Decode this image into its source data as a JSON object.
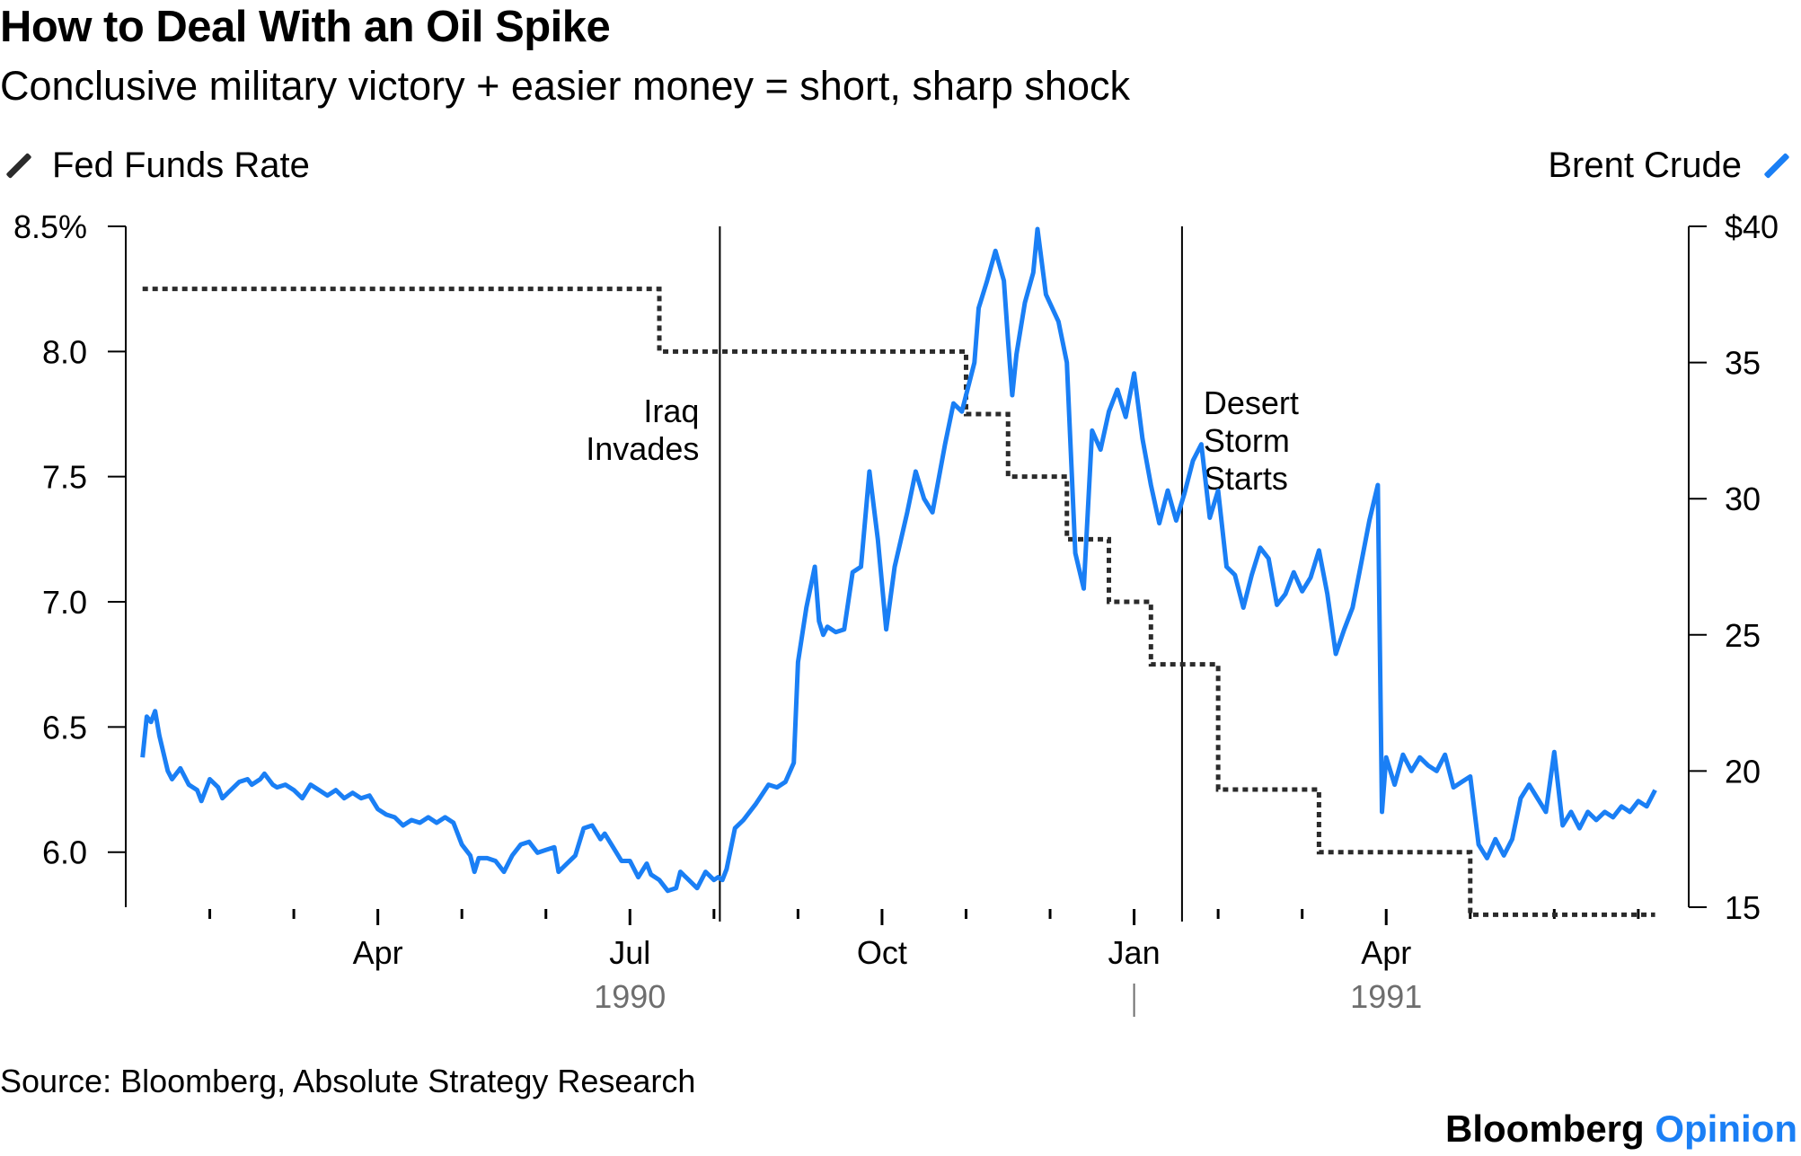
{
  "colors": {
    "fed": "#2b2b2b",
    "brent": "#1a7ff5",
    "axis": "#000000",
    "year": "#6e6e6e"
  },
  "chart_data": {
    "type": "line",
    "title": "How to Deal With an Oil Spike",
    "subtitle": "Conclusive military victory + easier money = short, sharp shock",
    "legend": {
      "left": "Fed Funds Rate",
      "right": "Brent Crude"
    },
    "x_ticks": [
      "Apr",
      "Jul",
      "Oct",
      "Jan",
      "Apr"
    ],
    "x_tick_months": [
      3,
      6,
      9,
      12,
      15
    ],
    "years": [
      {
        "label": "1990",
        "month": 6
      },
      {
        "label": "1991",
        "month": 15
      }
    ],
    "y_left": {
      "range": [
        5.78,
        8.5
      ],
      "ticks": [
        8.5,
        8.0,
        7.5,
        7.0,
        6.5,
        6.0
      ],
      "tick_labels": [
        "8.5%",
        "8.0",
        "7.5",
        "7.0",
        "6.5",
        "6.0"
      ]
    },
    "y_right": {
      "range": [
        15,
        40
      ],
      "ticks": [
        40,
        35,
        30,
        25,
        20,
        15
      ],
      "tick_labels": [
        "$40",
        "35",
        "30",
        "25",
        "20",
        "15"
      ]
    },
    "annotations": [
      {
        "label": "Iraq Invades",
        "lines": [
          "Iraq",
          "Invades"
        ],
        "month": 7.07,
        "side": "left"
      },
      {
        "label": "Desert Storm Starts",
        "lines": [
          "Desert",
          "Storm",
          "Starts"
        ],
        "month": 12.57,
        "side": "right"
      }
    ],
    "series": [
      {
        "name": "Fed Funds Rate",
        "axis": "left",
        "style": "dotted",
        "steps": [
          [
            0.2,
            8.25
          ],
          [
            6.35,
            8.0
          ],
          [
            10.0,
            7.75
          ],
          [
            10.5,
            7.5
          ],
          [
            11.2,
            7.25
          ],
          [
            11.7,
            7.0
          ],
          [
            12.2,
            6.75
          ],
          [
            13.0,
            6.25
          ],
          [
            14.2,
            6.0
          ],
          [
            16.0,
            5.75
          ],
          [
            18.2,
            5.75
          ]
        ]
      },
      {
        "name": "Brent Crude",
        "axis": "right",
        "style": "solid",
        "points": [
          [
            0.2,
            20.5
          ],
          [
            0.25,
            22
          ],
          [
            0.3,
            21.8
          ],
          [
            0.35,
            22.2
          ],
          [
            0.4,
            21.3
          ],
          [
            0.5,
            20
          ],
          [
            0.55,
            19.7
          ],
          [
            0.65,
            20.1
          ],
          [
            0.75,
            19.5
          ],
          [
            0.85,
            19.3
          ],
          [
            0.9,
            18.9
          ],
          [
            1.0,
            19.7
          ],
          [
            1.1,
            19.4
          ],
          [
            1.15,
            19
          ],
          [
            1.25,
            19.3
          ],
          [
            1.35,
            19.6
          ],
          [
            1.45,
            19.7
          ],
          [
            1.5,
            19.5
          ],
          [
            1.6,
            19.7
          ],
          [
            1.65,
            19.9
          ],
          [
            1.75,
            19.5
          ],
          [
            1.8,
            19.4
          ],
          [
            1.9,
            19.5
          ],
          [
            2.0,
            19.3
          ],
          [
            2.1,
            19
          ],
          [
            2.2,
            19.5
          ],
          [
            2.3,
            19.3
          ],
          [
            2.4,
            19.1
          ],
          [
            2.5,
            19.3
          ],
          [
            2.6,
            19
          ],
          [
            2.7,
            19.2
          ],
          [
            2.8,
            19
          ],
          [
            2.9,
            19.1
          ],
          [
            3.0,
            18.6
          ],
          [
            3.1,
            18.4
          ],
          [
            3.2,
            18.3
          ],
          [
            3.3,
            18
          ],
          [
            3.4,
            18.2
          ],
          [
            3.5,
            18.1
          ],
          [
            3.6,
            18.3
          ],
          [
            3.7,
            18.1
          ],
          [
            3.8,
            18.3
          ],
          [
            3.9,
            18.1
          ],
          [
            4.0,
            17.3
          ],
          [
            4.1,
            16.9
          ],
          [
            4.15,
            16.3
          ],
          [
            4.2,
            16.8
          ],
          [
            4.3,
            16.8
          ],
          [
            4.4,
            16.7
          ],
          [
            4.5,
            16.3
          ],
          [
            4.6,
            16.9
          ],
          [
            4.7,
            17.3
          ],
          [
            4.8,
            17.4
          ],
          [
            4.9,
            17.0
          ],
          [
            5.0,
            17.1
          ],
          [
            5.1,
            17.2
          ],
          [
            5.15,
            16.3
          ],
          [
            5.25,
            16.6
          ],
          [
            5.35,
            16.9
          ],
          [
            5.45,
            17.9
          ],
          [
            5.55,
            18.0
          ],
          [
            5.65,
            17.5
          ],
          [
            5.7,
            17.7
          ],
          [
            5.8,
            17.2
          ],
          [
            5.9,
            16.7
          ],
          [
            6.0,
            16.7
          ],
          [
            6.1,
            16.1
          ],
          [
            6.2,
            16.6
          ],
          [
            6.25,
            16.2
          ],
          [
            6.35,
            16.0
          ],
          [
            6.45,
            15.6
          ],
          [
            6.55,
            15.7
          ],
          [
            6.6,
            16.3
          ],
          [
            6.7,
            16.0
          ],
          [
            6.8,
            15.7
          ],
          [
            6.9,
            16.3
          ],
          [
            7.0,
            16.0
          ],
          [
            7.05,
            16.1
          ],
          [
            7.1,
            16.0
          ],
          [
            7.15,
            16.4
          ],
          [
            7.25,
            17.9
          ],
          [
            7.35,
            18.2
          ],
          [
            7.5,
            18.8
          ],
          [
            7.65,
            19.5
          ],
          [
            7.75,
            19.4
          ],
          [
            7.85,
            19.6
          ],
          [
            7.95,
            20.3
          ],
          [
            8.0,
            24
          ],
          [
            8.1,
            26
          ],
          [
            8.2,
            27.5
          ],
          [
            8.25,
            25.5
          ],
          [
            8.3,
            25
          ],
          [
            8.35,
            25.3
          ],
          [
            8.45,
            25.1
          ],
          [
            8.55,
            25.2
          ],
          [
            8.65,
            27.3
          ],
          [
            8.75,
            27.5
          ],
          [
            8.85,
            31
          ],
          [
            8.95,
            28.5
          ],
          [
            9.05,
            25.2
          ],
          [
            9.15,
            27.5
          ],
          [
            9.3,
            29.5
          ],
          [
            9.4,
            31
          ],
          [
            9.5,
            30
          ],
          [
            9.6,
            29.5
          ],
          [
            9.75,
            32
          ],
          [
            9.85,
            33.5
          ],
          [
            9.95,
            33.2
          ],
          [
            10.1,
            35
          ],
          [
            10.15,
            37
          ],
          [
            10.25,
            38
          ],
          [
            10.35,
            39.1
          ],
          [
            10.45,
            38
          ],
          [
            10.5,
            35.8
          ],
          [
            10.55,
            33.8
          ],
          [
            10.6,
            35.3
          ],
          [
            10.7,
            37.2
          ],
          [
            10.8,
            38.3
          ],
          [
            10.85,
            39.9
          ],
          [
            10.95,
            37.5
          ],
          [
            11.1,
            36.5
          ],
          [
            11.2,
            35
          ],
          [
            11.3,
            28
          ],
          [
            11.4,
            26.7
          ],
          [
            11.5,
            32.5
          ],
          [
            11.6,
            31.8
          ],
          [
            11.7,
            33.2
          ],
          [
            11.8,
            34
          ],
          [
            11.9,
            33
          ],
          [
            12.0,
            34.6
          ],
          [
            12.1,
            32.2
          ],
          [
            12.2,
            30.5
          ],
          [
            12.3,
            29.1
          ],
          [
            12.4,
            30.3
          ],
          [
            12.5,
            29.2
          ],
          [
            12.6,
            30.2
          ],
          [
            12.7,
            31.4
          ],
          [
            12.8,
            32.0
          ],
          [
            12.9,
            29.3
          ],
          [
            13.0,
            30.3
          ],
          [
            13.1,
            27.5
          ],
          [
            13.2,
            27.2
          ],
          [
            13.3,
            26.0
          ],
          [
            13.4,
            27.2
          ],
          [
            13.5,
            28.2
          ],
          [
            13.6,
            27.8
          ],
          [
            13.7,
            26.1
          ],
          [
            13.8,
            26.5
          ],
          [
            13.9,
            27.3
          ],
          [
            14.0,
            26.6
          ],
          [
            14.1,
            27.1
          ],
          [
            14.2,
            28.1
          ],
          [
            14.3,
            26.5
          ],
          [
            14.4,
            24.3
          ],
          [
            14.5,
            25.2
          ],
          [
            14.6,
            26.0
          ],
          [
            14.7,
            27.6
          ],
          [
            14.8,
            29.2
          ],
          [
            14.9,
            30.5
          ],
          [
            14.95,
            18.5
          ],
          [
            15.0,
            20.5
          ],
          [
            15.1,
            19.5
          ],
          [
            15.2,
            20.6
          ],
          [
            15.3,
            20.0
          ],
          [
            15.4,
            20.5
          ],
          [
            15.5,
            20.2
          ],
          [
            15.6,
            20.0
          ],
          [
            15.7,
            20.6
          ],
          [
            15.8,
            19.4
          ],
          [
            15.9,
            19.6
          ],
          [
            16.0,
            19.8
          ],
          [
            16.1,
            17.3
          ],
          [
            16.2,
            16.8
          ],
          [
            16.3,
            17.5
          ],
          [
            16.4,
            16.9
          ],
          [
            16.5,
            17.5
          ],
          [
            16.6,
            19.0
          ],
          [
            16.7,
            19.5
          ],
          [
            16.8,
            19.0
          ],
          [
            16.9,
            18.5
          ],
          [
            17.0,
            20.7
          ],
          [
            17.1,
            18.0
          ],
          [
            17.2,
            18.5
          ],
          [
            17.3,
            17.9
          ],
          [
            17.4,
            18.5
          ],
          [
            17.5,
            18.2
          ],
          [
            17.6,
            18.5
          ],
          [
            17.7,
            18.3
          ],
          [
            17.8,
            18.7
          ],
          [
            17.9,
            18.5
          ],
          [
            18.0,
            18.9
          ],
          [
            18.1,
            18.7
          ],
          [
            18.2,
            19.3
          ]
        ]
      }
    ]
  },
  "source": "Source: Bloomberg, Absolute Strategy Research",
  "brand": {
    "name": "Bloomberg",
    "product": "Opinion"
  }
}
